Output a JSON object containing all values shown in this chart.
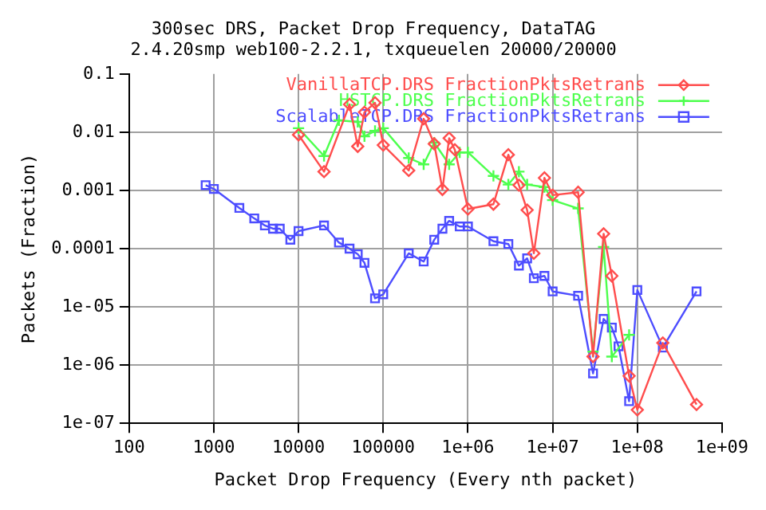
{
  "chart_data": {
    "type": "line",
    "title": "300sec DRS, Packet Drop Frequency, DataTAG",
    "subtitle": "2.4.20smp web100-2.2.1, txqueuelen 20000/20000",
    "xlabel": "Packet Drop Frequency (Every nth packet)",
    "ylabel": "Packets (Fraction)",
    "log": "xy",
    "grid": true,
    "legend": "top right",
    "xlim": [
      100,
      1000000000
    ],
    "ylim": [
      1e-07,
      0.1
    ],
    "xticks": [
      100,
      1000,
      10000,
      100000,
      {
        "value": 1000000,
        "label": "1e+06"
      },
      {
        "value": 10000000,
        "label": "1e+07"
      },
      {
        "value": 100000000,
        "label": "1e+08"
      },
      {
        "value": 1000000000,
        "label": "1e+09"
      }
    ],
    "yticks": [
      0.1,
      0.01,
      0.001,
      0.0001,
      {
        "value": 1e-05,
        "label": "1e-05"
      },
      {
        "value": 1e-06,
        "label": "1e-06"
      },
      {
        "value": 1e-07,
        "label": "1e-07"
      }
    ],
    "series": [
      {
        "name": "VanillaTCP.DRS FractionPktsRetrans",
        "color": "#ff4d4d",
        "marker": "diamond",
        "x": [
          10000,
          20000,
          40000,
          50000,
          60000,
          80000,
          100000,
          200000,
          300000,
          400000,
          500000,
          600000,
          700000,
          1000000,
          2000000,
          3000000,
          4000000,
          5000000,
          6000000,
          8000000,
          10000000,
          20000000,
          30000000,
          40000000,
          50000000,
          80000000,
          100000000,
          200000000,
          500000000
        ],
        "values": [
          0.009,
          0.0021,
          0.03,
          0.0057,
          0.022,
          0.032,
          0.006,
          0.0022,
          0.017,
          0.0063,
          0.00104,
          0.0079,
          0.005,
          0.00048,
          0.00058,
          0.0041,
          0.00123,
          0.00046,
          8.3e-05,
          0.00164,
          0.00083,
          0.00093,
          1.4e-06,
          0.00018,
          3.4e-05,
          6.5e-07,
          1.7e-07,
          2.4e-06,
          2.1e-07
        ]
      },
      {
        "name": "HSTCP.DRS FractionPktsRetrans",
        "color": "#4dff4d",
        "marker": "cross",
        "x": [
          10000,
          20000,
          30000,
          50000,
          60000,
          80000,
          100000,
          200000,
          300000,
          400000,
          600000,
          800000,
          1000000,
          2000000,
          3000000,
          4000000,
          5000000,
          8000000,
          10000000,
          20000000,
          30000000,
          40000000,
          50000000,
          80000000
        ],
        "values": [
          0.0117,
          0.0039,
          0.016,
          0.015,
          0.0085,
          0.0105,
          0.0117,
          0.0036,
          0.0028,
          0.0066,
          0.0028,
          0.0045,
          0.0045,
          0.00177,
          0.00126,
          0.0021,
          0.00126,
          0.00114,
          0.00068,
          0.00049,
          1.7e-06,
          0.000107,
          1.4e-06,
          3.3e-06
        ]
      },
      {
        "name": "ScalableTCP.DRS FractionPktsRetrans",
        "color": "#4d4dff",
        "marker": "square",
        "x": [
          800,
          1000,
          2000,
          3000,
          4000,
          5000,
          6000,
          8000,
          10000,
          20000,
          30000,
          40000,
          50000,
          60000,
          80000,
          100000,
          200000,
          300000,
          400000,
          500000,
          600000,
          800000,
          1000000,
          2000000,
          3000000,
          4000000,
          5000000,
          6000000,
          8000000,
          10000000,
          20000000,
          30000000,
          40000000,
          50000000,
          60000000,
          80000000,
          100000000,
          200000000,
          500000000
        ],
        "values": [
          0.00123,
          0.00106,
          0.0005,
          0.00033,
          0.00025,
          0.00022,
          0.00022,
          0.000142,
          0.0002,
          0.00025,
          0.000127,
          0.0001,
          8e-05,
          5.7e-05,
          1.4e-05,
          1.64e-05,
          8.3e-05,
          6e-05,
          0.000142,
          0.00022,
          0.0003,
          0.00024,
          0.00024,
          0.000134,
          0.00012,
          5.1e-05,
          6.8e-05,
          3.1e-05,
          3.4e-05,
          1.84e-05,
          1.55e-05,
          7.2e-07,
          6.2e-06,
          4.4e-06,
          2.1e-06,
          2.4e-07,
          1.95e-05,
          2e-06,
          1.84e-05
        ]
      }
    ]
  }
}
